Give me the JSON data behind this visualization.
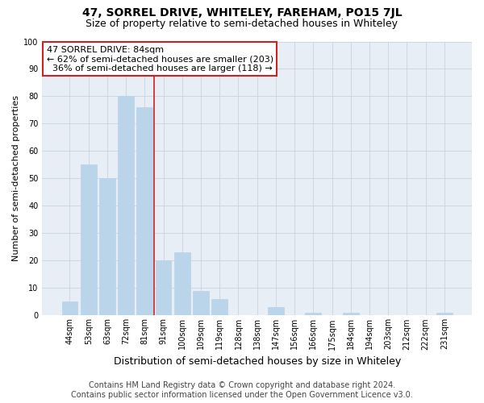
{
  "title": "47, SORREL DRIVE, WHITELEY, FAREHAM, PO15 7JL",
  "subtitle": "Size of property relative to semi-detached houses in Whiteley",
  "xlabel": "Distribution of semi-detached houses by size in Whiteley",
  "ylabel": "Number of semi-detached properties",
  "categories": [
    "44sqm",
    "53sqm",
    "63sqm",
    "72sqm",
    "81sqm",
    "91sqm",
    "100sqm",
    "109sqm",
    "119sqm",
    "128sqm",
    "138sqm",
    "147sqm",
    "156sqm",
    "166sqm",
    "175sqm",
    "184sqm",
    "194sqm",
    "203sqm",
    "212sqm",
    "222sqm",
    "231sqm"
  ],
  "values": [
    5,
    55,
    50,
    80,
    76,
    20,
    23,
    9,
    6,
    0,
    0,
    3,
    0,
    1,
    0,
    1,
    0,
    0,
    0,
    0,
    1
  ],
  "bar_color": "#bad4ea",
  "bar_edge_color": "#bad4ea",
  "highlight_bar_index": 4,
  "vline_color": "#cc2222",
  "annotation_line1": "47 SORREL DRIVE: 84sqm",
  "annotation_line2": "← 62% of semi-detached houses are smaller (203)",
  "annotation_line3": "  36% of semi-detached houses are larger (118) →",
  "annotation_box_color": "#ffffff",
  "annotation_box_edge_color": "#cc2222",
  "ylim": [
    0,
    100
  ],
  "yticks": [
    0,
    10,
    20,
    30,
    40,
    50,
    60,
    70,
    80,
    90,
    100
  ],
  "footer_line1": "Contains HM Land Registry data © Crown copyright and database right 2024.",
  "footer_line2": "Contains public sector information licensed under the Open Government Licence v3.0.",
  "background_color": "#ffffff",
  "plot_bg_color": "#e8eef5",
  "grid_color": "#c8d4e0",
  "title_fontsize": 10,
  "subtitle_fontsize": 9,
  "xlabel_fontsize": 9,
  "ylabel_fontsize": 8,
  "tick_fontsize": 7,
  "annotation_fontsize": 8,
  "footer_fontsize": 7
}
